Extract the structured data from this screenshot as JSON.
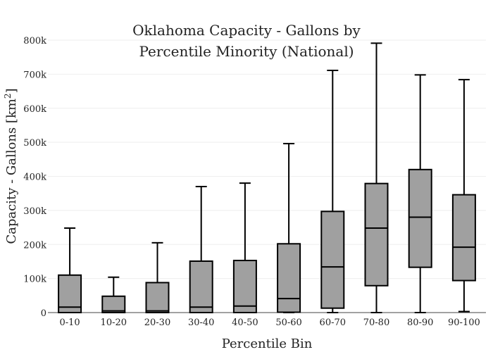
{
  "chart_data": {
    "type": "box",
    "title_lines": [
      "Oklahoma Capacity - Gallons by",
      "Percentile Minority (National)"
    ],
    "xlabel": "Percentile Bin",
    "ylabel_main": "Capacity - Gallons  [km",
    "ylabel_sup": "2",
    "ylabel_end": "]",
    "ylim": [
      0,
      800000
    ],
    "yticks": [
      0,
      100000,
      200000,
      300000,
      400000,
      500000,
      600000,
      700000,
      800000
    ],
    "ytick_labels": [
      "0",
      "100k",
      "200k",
      "300k",
      "400k",
      "500k",
      "600k",
      "700k",
      "800k"
    ],
    "categories": [
      "0-10",
      "10-20",
      "20-30",
      "30-40",
      "40-50",
      "50-60",
      "60-70",
      "70-80",
      "80-90",
      "90-100"
    ],
    "boxes": [
      {
        "min": 0,
        "q1": 0,
        "median": 16000,
        "q3": 110000,
        "max": 248000
      },
      {
        "min": 0,
        "q1": 0,
        "median": 5000,
        "q3": 48000,
        "max": 104000
      },
      {
        "min": 0,
        "q1": 0,
        "median": 5000,
        "q3": 88000,
        "max": 205000
      },
      {
        "min": 0,
        "q1": 0,
        "median": 16000,
        "q3": 151000,
        "max": 370000
      },
      {
        "min": 0,
        "q1": 0,
        "median": 19000,
        "q3": 153000,
        "max": 380000
      },
      {
        "min": 0,
        "q1": 1000,
        "median": 41000,
        "q3": 202000,
        "max": 496000
      },
      {
        "min": 0,
        "q1": 13000,
        "median": 134000,
        "q3": 297000,
        "max": 711000
      },
      {
        "min": 0,
        "q1": 79000,
        "median": 248000,
        "q3": 379000,
        "max": 791000
      },
      {
        "min": 0,
        "q1": 133000,
        "median": 280000,
        "q3": 420000,
        "max": 698000
      },
      {
        "min": 3000,
        "q1": 94000,
        "median": 192000,
        "q3": 346000,
        "max": 684000
      }
    ],
    "grid": true,
    "box_color": "#a0a0a0",
    "line_color": "#000000"
  }
}
